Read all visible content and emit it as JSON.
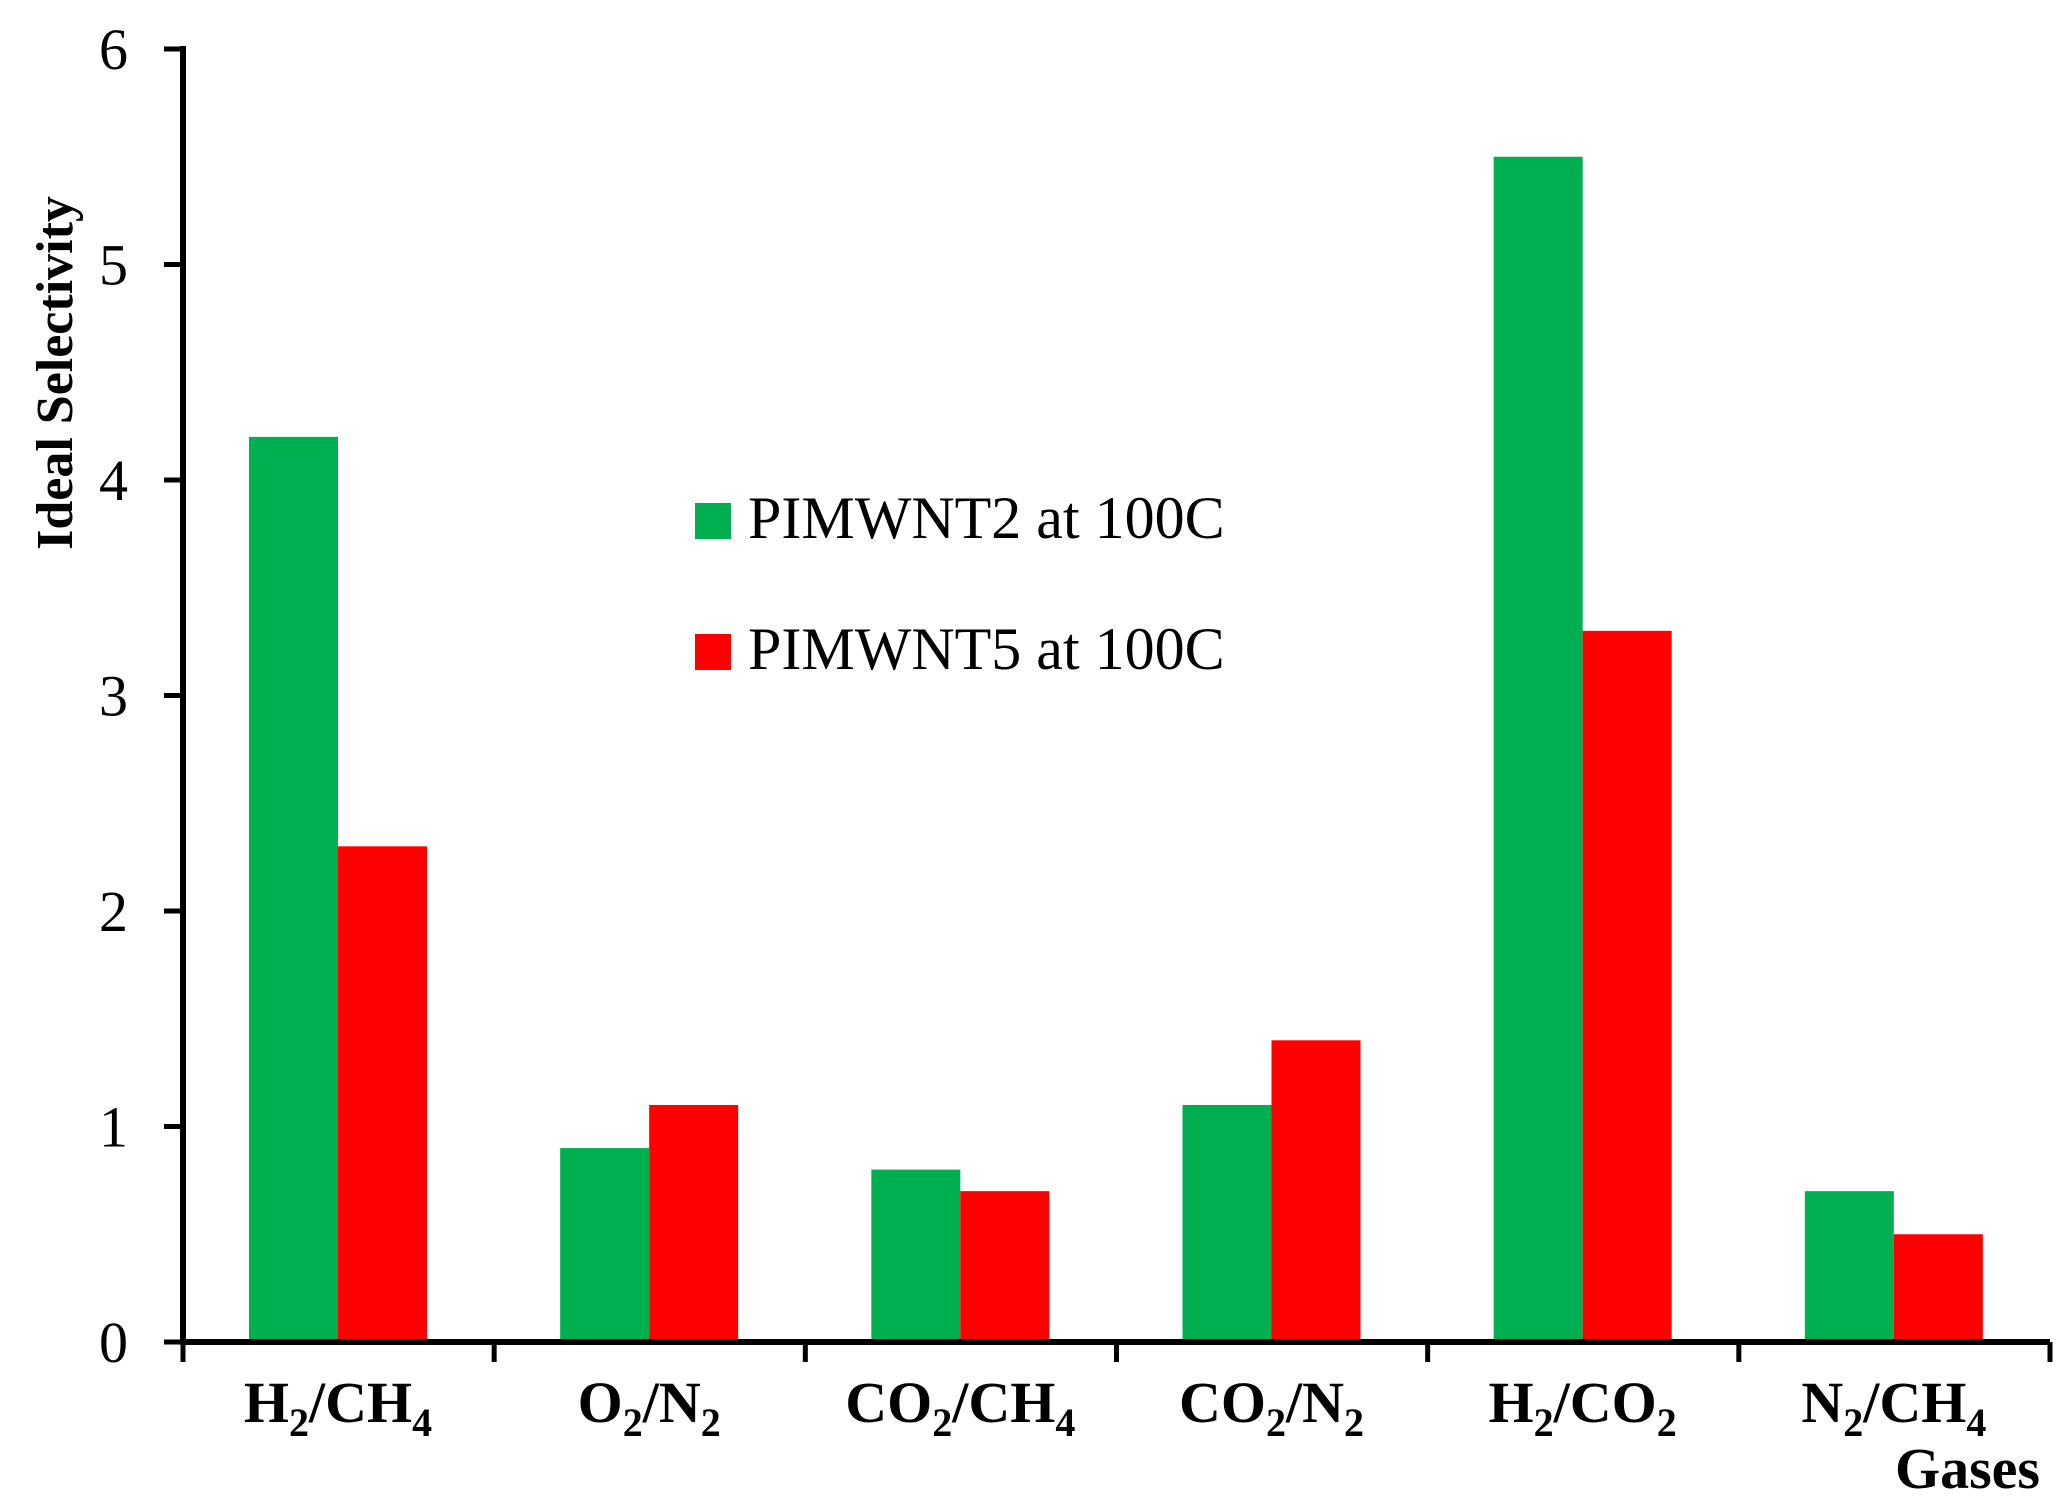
{
  "chart_data": {
    "type": "bar",
    "ylabel": "Ideal Selectivity",
    "xlabel": "Gases",
    "ylim": [
      0,
      6
    ],
    "yticks": [
      "0",
      "1",
      "2",
      "3",
      "4",
      "5",
      "6"
    ],
    "categories": [
      {
        "base": "H",
        "sub1": "2",
        "mid": "/CH",
        "sub2": "4"
      },
      {
        "base": "O",
        "sub1": "2",
        "mid": "/N",
        "sub2": "2"
      },
      {
        "base": "CO",
        "sub1": "2",
        "mid": "/CH",
        "sub2": "4"
      },
      {
        "base": "CO",
        "sub1": "2",
        "mid": "/N",
        "sub2": "2"
      },
      {
        "base": "H",
        "sub1": "2",
        "mid": "/CO",
        "sub2": "2"
      },
      {
        "base": "N",
        "sub1": "2",
        "mid": "/CH",
        "sub2": "4"
      }
    ],
    "series": [
      {
        "name": "PIMWNT2 at 100C",
        "color": "#00b050",
        "values": [
          4.2,
          0.9,
          0.8,
          1.1,
          5.5,
          0.7
        ]
      },
      {
        "name": "PIMWNT5 at 100C",
        "color": "#ff0000",
        "values": [
          2.3,
          1.1,
          0.7,
          1.4,
          3.3,
          0.5
        ]
      }
    ],
    "grid": false,
    "legend_position": "center"
  }
}
